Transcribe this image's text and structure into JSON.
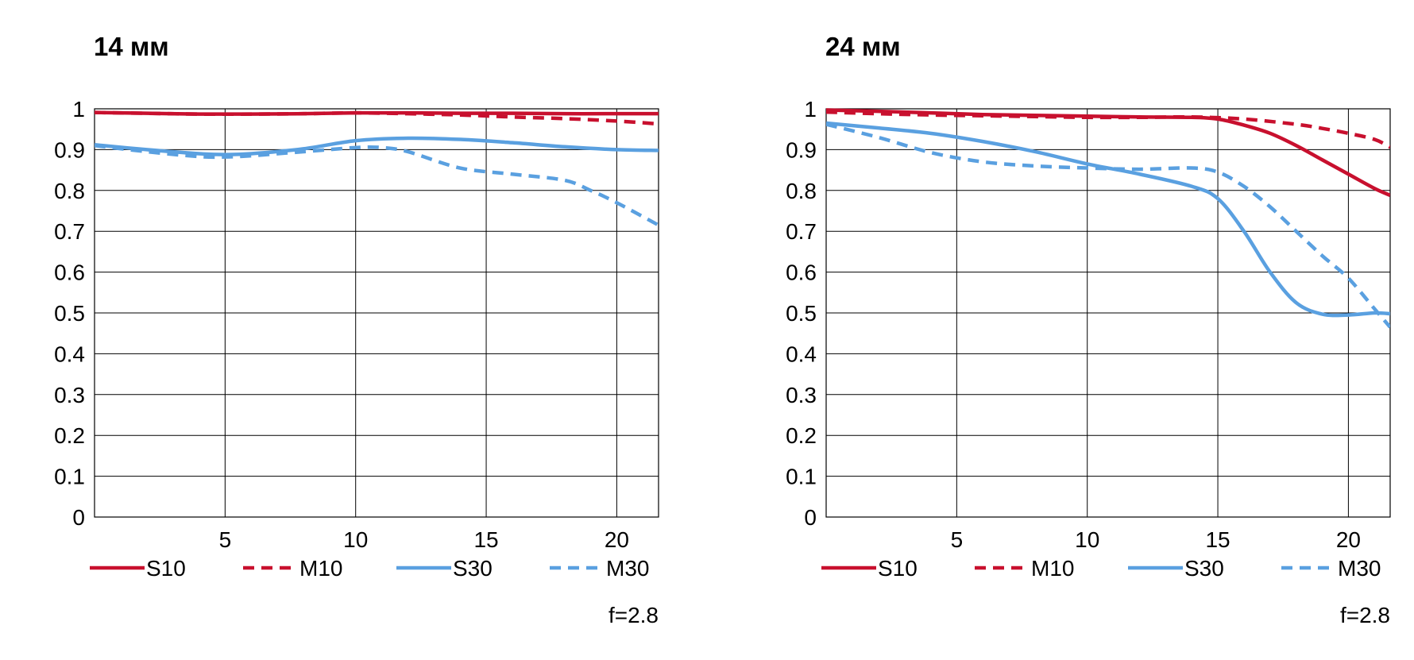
{
  "colors": {
    "red": "#c8102e",
    "blue": "#5aa0e0",
    "grid": "#000000"
  },
  "chart_data": [
    {
      "type": "line",
      "title": "14 мм",
      "note": "f=2.8",
      "xlim": [
        0,
        21.6
      ],
      "ylim": [
        0,
        1
      ],
      "xticks": [
        "5",
        "10",
        "15",
        "20"
      ],
      "xtick_values": [
        5,
        10,
        15,
        20
      ],
      "yticks": [
        "0",
        "0.1",
        "0.2",
        "0.3",
        "0.4",
        "0.5",
        "0.6",
        "0.7",
        "0.8",
        "0.9",
        "1"
      ],
      "ytick_values": [
        0,
        0.1,
        0.2,
        0.3,
        0.4,
        0.5,
        0.6,
        0.7,
        0.8,
        0.9,
        1
      ],
      "grid": true,
      "legend_placement": "bottom",
      "series": [
        {
          "name": "S10",
          "color": "red",
          "style": "solid",
          "x": [
            0,
            2,
            4,
            6,
            8,
            10,
            12,
            14,
            16,
            18,
            20,
            21.6
          ],
          "y": [
            0.991,
            0.989,
            0.987,
            0.987,
            0.988,
            0.99,
            0.99,
            0.989,
            0.989,
            0.988,
            0.988,
            0.988
          ]
        },
        {
          "name": "M10",
          "color": "red",
          "style": "dashed",
          "x": [
            0,
            2,
            4,
            6,
            8,
            10,
            12,
            14,
            16,
            18,
            20,
            21.6
          ],
          "y": [
            0.991,
            0.989,
            0.987,
            0.987,
            0.988,
            0.99,
            0.988,
            0.985,
            0.98,
            0.976,
            0.97,
            0.963
          ]
        },
        {
          "name": "S30",
          "color": "blue",
          "style": "solid",
          "x": [
            0,
            2,
            4,
            5,
            6,
            8,
            10,
            12,
            14,
            16,
            18,
            20,
            21.6
          ],
          "y": [
            0.912,
            0.9,
            0.89,
            0.888,
            0.89,
            0.902,
            0.922,
            0.928,
            0.925,
            0.917,
            0.907,
            0.9,
            0.898
          ]
        },
        {
          "name": "M30",
          "color": "blue",
          "style": "dashed",
          "x": [
            0,
            2,
            4,
            5,
            6,
            8,
            10,
            11,
            12,
            14,
            16,
            18,
            19,
            20,
            21.6
          ],
          "y": [
            0.91,
            0.895,
            0.883,
            0.882,
            0.885,
            0.895,
            0.905,
            0.905,
            0.895,
            0.855,
            0.84,
            0.825,
            0.8,
            0.77,
            0.715
          ]
        }
      ]
    },
    {
      "type": "line",
      "title": "24 мм",
      "note": "f=2.8",
      "xlim": [
        0,
        21.6
      ],
      "ylim": [
        0,
        1
      ],
      "xticks": [
        "5",
        "10",
        "15",
        "20"
      ],
      "xtick_values": [
        5,
        10,
        15,
        20
      ],
      "yticks": [
        "0",
        "0.1",
        "0.2",
        "0.3",
        "0.4",
        "0.5",
        "0.6",
        "0.7",
        "0.8",
        "0.9",
        "1"
      ],
      "ytick_values": [
        0,
        0.1,
        0.2,
        0.3,
        0.4,
        0.5,
        0.6,
        0.7,
        0.8,
        0.9,
        1
      ],
      "grid": true,
      "legend_placement": "bottom",
      "series": [
        {
          "name": "S10",
          "color": "red",
          "style": "solid",
          "x": [
            0,
            2,
            4,
            6,
            8,
            10,
            12,
            14,
            15,
            16,
            17,
            18,
            19,
            20,
            21,
            21.6
          ],
          "y": [
            0.997,
            0.994,
            0.99,
            0.986,
            0.984,
            0.982,
            0.98,
            0.979,
            0.975,
            0.96,
            0.94,
            0.91,
            0.875,
            0.84,
            0.805,
            0.788
          ]
        },
        {
          "name": "M10",
          "color": "red",
          "style": "dashed",
          "x": [
            0,
            2,
            4,
            6,
            8,
            10,
            12,
            14,
            16,
            18,
            19,
            20,
            21,
            21.6
          ],
          "y": [
            0.992,
            0.988,
            0.985,
            0.983,
            0.981,
            0.979,
            0.979,
            0.98,
            0.975,
            0.962,
            0.952,
            0.94,
            0.925,
            0.906
          ]
        },
        {
          "name": "S30",
          "color": "blue",
          "style": "solid",
          "x": [
            0,
            2,
            4,
            6,
            8,
            10,
            12,
            14,
            15,
            16,
            17,
            18,
            19,
            20,
            21,
            21.6
          ],
          "y": [
            0.965,
            0.953,
            0.94,
            0.92,
            0.895,
            0.865,
            0.84,
            0.81,
            0.78,
            0.7,
            0.6,
            0.525,
            0.497,
            0.495,
            0.5,
            0.498
          ]
        },
        {
          "name": "M30",
          "color": "blue",
          "style": "dashed",
          "x": [
            0,
            2,
            4,
            6,
            8,
            10,
            12,
            14,
            15,
            16,
            17,
            18,
            19,
            20,
            21,
            21.6
          ],
          "y": [
            0.962,
            0.93,
            0.893,
            0.87,
            0.86,
            0.855,
            0.852,
            0.855,
            0.845,
            0.81,
            0.76,
            0.7,
            0.64,
            0.585,
            0.51,
            0.465
          ]
        }
      ]
    }
  ]
}
